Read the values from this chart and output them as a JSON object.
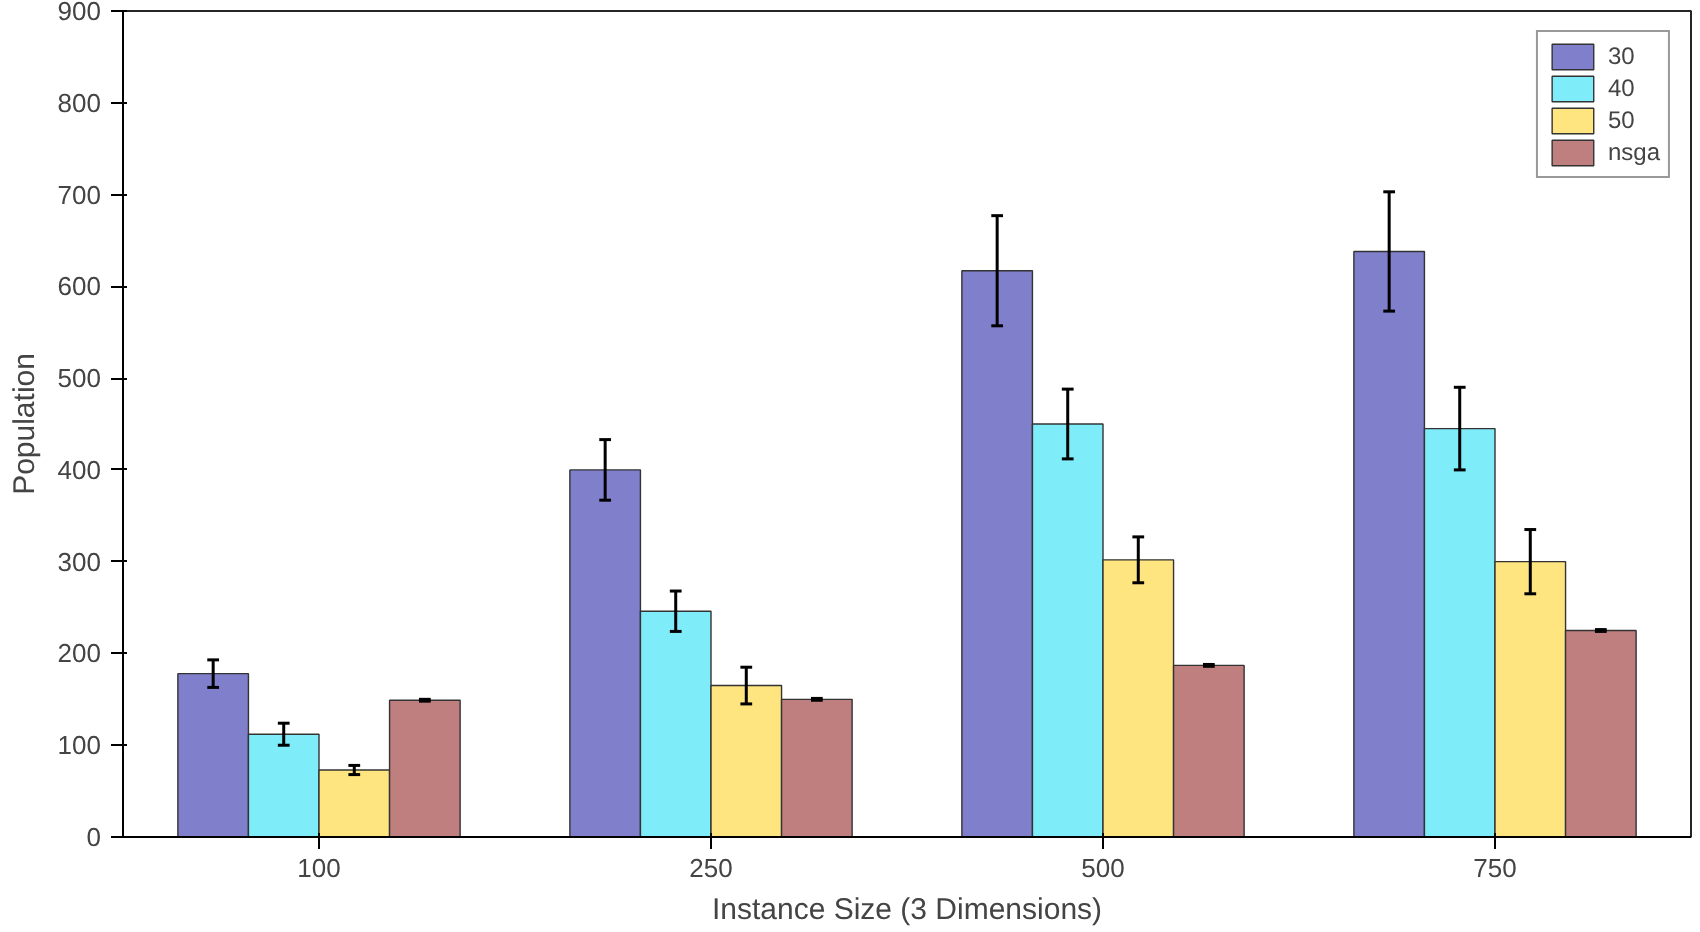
{
  "chart_data": {
    "type": "bar",
    "xlabel": "Instance Size (3 Dimensions)",
    "ylabel": "Population",
    "categories": [
      "100",
      "250",
      "500",
      "750"
    ],
    "series": [
      {
        "name": "30",
        "color": "#7f7fcc",
        "values": [
          178,
          400,
          617,
          638
        ],
        "errors": [
          15,
          33,
          60,
          65
        ]
      },
      {
        "name": "40",
        "color": "#7fecfa",
        "values": [
          112,
          246,
          450,
          445
        ],
        "errors": [
          12,
          22,
          38,
          45
        ]
      },
      {
        "name": "50",
        "color": "#fee57f",
        "values": [
          73,
          165,
          302,
          300
        ],
        "errors": [
          5,
          20,
          25,
          35
        ]
      },
      {
        "name": "nsga",
        "color": "#bf7f7f",
        "values": [
          149,
          150,
          187,
          225
        ],
        "errors": [
          1,
          1,
          1,
          1
        ]
      }
    ],
    "ylim": [
      0,
      900
    ],
    "yticks": [
      0,
      100,
      200,
      300,
      400,
      500,
      600,
      700,
      800,
      900
    ],
    "grid": false,
    "legend": "top right"
  }
}
